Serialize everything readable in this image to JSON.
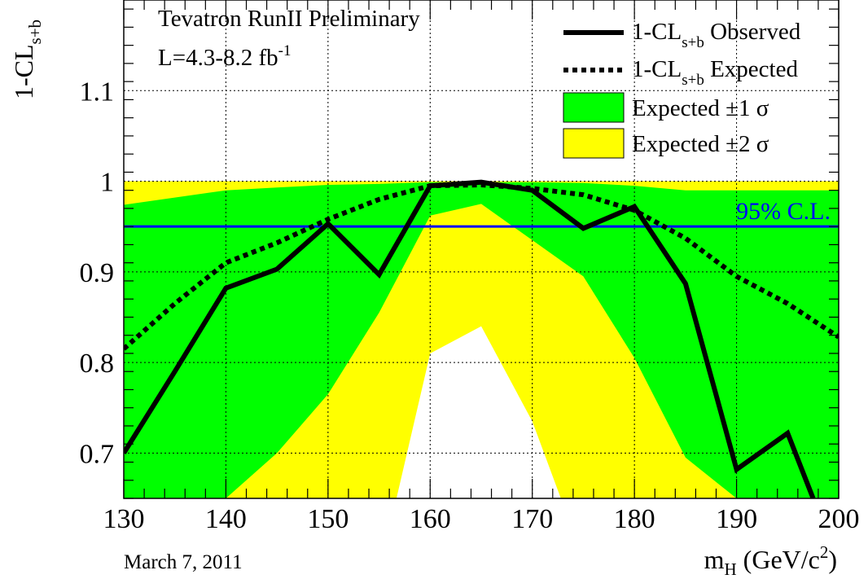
{
  "chart_data": {
    "type": "line",
    "xlabel_main": "m",
    "xlabel_sub": "H",
    "xlabel_rest": " (GeV/c",
    "xlabel_sup": "2",
    "xlabel_close": ")",
    "ylabel_main": "1-CL",
    "ylabel_sub": "s+b",
    "xlim": [
      130,
      200
    ],
    "ylim": [
      0.65,
      1.2
    ],
    "xticks": [
      130,
      140,
      150,
      160,
      170,
      180,
      190,
      200
    ],
    "xtick_labels": [
      "130",
      "140",
      "150",
      "160",
      "170",
      "180",
      "190",
      "200"
    ],
    "yticks": [
      0.7,
      0.8,
      0.9,
      1.0,
      1.1
    ],
    "ytick_labels": [
      "0.7",
      "0.8",
      "0.9",
      "1",
      "1.1"
    ],
    "grid": true,
    "annotation_line1": "Tevatron RunII Preliminary",
    "annotation_line2_main": "L=4.3-8.2 fb",
    "annotation_line2_sup": "-1",
    "date_label": "March 7, 2011",
    "cl_line": {
      "label": "95% C.L.",
      "y": 0.95,
      "color": "#0000ff"
    },
    "legend": {
      "placement": "top-right",
      "observed": {
        "main": "1-CL",
        "sub": "s+b",
        "rest": " Observed"
      },
      "expected": {
        "main": "1-CL",
        "sub": "s+b",
        "rest": " Expected"
      },
      "band1": {
        "label": "Expected ±1 σ"
      },
      "band2": {
        "label": "Expected ±2 σ"
      }
    },
    "colors": {
      "band1": "#00ff00",
      "band2": "#ffff00",
      "line": "#000000"
    },
    "observed": {
      "x": [
        130,
        135,
        140,
        145,
        150,
        155,
        160,
        165,
        170,
        175,
        180,
        185,
        190,
        195,
        197.5
      ],
      "y": [
        0.7,
        0.79,
        0.882,
        0.903,
        0.953,
        0.897,
        0.995,
        0.999,
        0.99,
        0.948,
        0.972,
        0.887,
        0.682,
        0.722,
        0.65
      ]
    },
    "expected": {
      "x": [
        130,
        135,
        140,
        145,
        150,
        155,
        160,
        165,
        170,
        175,
        180,
        185,
        190,
        195,
        200
      ],
      "y": [
        0.815,
        0.865,
        0.91,
        0.932,
        0.958,
        0.98,
        0.995,
        0.996,
        0.992,
        0.985,
        0.968,
        0.937,
        0.895,
        0.865,
        0.828
      ]
    },
    "band2": {
      "x": [
        130,
        140,
        145,
        150,
        155,
        156.7,
        160,
        165,
        170,
        172.8,
        175,
        180,
        185,
        187.6,
        190,
        200
      ],
      "low": [
        0.65,
        0.65,
        0.65,
        0.65,
        0.65,
        0.65,
        0.81,
        0.84,
        0.735,
        0.65,
        0.65,
        0.65,
        0.65,
        0.65,
        0.65,
        0.65
      ],
      "high": [
        1.0,
        1.0,
        1.0,
        1.0,
        1.0,
        1.0,
        1.0,
        1.0,
        1.0,
        1.0,
        1.0,
        1.0,
        1.0,
        1.0,
        1.0,
        1.0
      ]
    },
    "band1": {
      "x": [
        130,
        140,
        145,
        150,
        155,
        160,
        165,
        170,
        175,
        180,
        185,
        190,
        200
      ],
      "low": [
        0.65,
        0.65,
        0.7,
        0.765,
        0.855,
        0.962,
        0.975,
        0.935,
        0.895,
        0.805,
        0.695,
        0.65,
        0.65
      ],
      "high": [
        0.974,
        0.99,
        0.993,
        0.996,
        0.997,
        0.999,
        0.999,
        0.999,
        0.998,
        0.995,
        0.99,
        0.99,
        0.99
      ]
    }
  }
}
